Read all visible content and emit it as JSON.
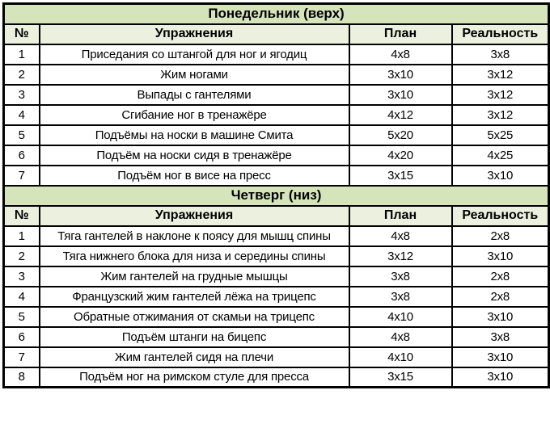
{
  "table": {
    "columns": [
      "№",
      "Упражнения",
      "План",
      "Реальность"
    ],
    "colors": {
      "section_title_bg": "#d6e4bc",
      "column_header_bg": "#ebf1de",
      "cell_bg": "#ffffff",
      "border": "#000000",
      "text": "#000000"
    },
    "sections": [
      {
        "title": "Понедельник (верх)",
        "rows": [
          {
            "num": "1",
            "exercise": "Приседания со штангой для ног и ягодиц",
            "plan": "4x8",
            "reality": "3x8"
          },
          {
            "num": "2",
            "exercise": "Жим ногами",
            "plan": "3x10",
            "reality": "3x12"
          },
          {
            "num": "3",
            "exercise": "Выпады с гантелями",
            "plan": "3x10",
            "reality": "3x12"
          },
          {
            "num": "4",
            "exercise": "Сгибание ног в тренажёре",
            "plan": "4x12",
            "reality": "3x12"
          },
          {
            "num": "5",
            "exercise": "Подъёмы на носки в машине Смита",
            "plan": "5x20",
            "reality": "5x25"
          },
          {
            "num": "6",
            "exercise": "Подъём на носки сидя в тренажёре",
            "plan": "4x20",
            "reality": "4x25"
          },
          {
            "num": "7",
            "exercise": "Подъём ног в висе на пресс",
            "plan": "3x15",
            "reality": "3x10"
          }
        ]
      },
      {
        "title": "Четверг (низ)",
        "rows": [
          {
            "num": "1",
            "exercise": "Тяга гантелей в наклоне к поясу для мышц спины",
            "plan": "4x8",
            "reality": "2x8"
          },
          {
            "num": "2",
            "exercise": "Тяга нижнего блока для низа и середины спины",
            "plan": "3x12",
            "reality": "3x10"
          },
          {
            "num": "3",
            "exercise": "Жим гантелей на грудные мышцы",
            "plan": "3x8",
            "reality": "2x8"
          },
          {
            "num": "4",
            "exercise": "Французский жим гантелей лёжа на трицепс",
            "plan": "3x8",
            "reality": "2x8"
          },
          {
            "num": "5",
            "exercise": "Обратные отжимания от скамьи на трицепс",
            "plan": "4x10",
            "reality": "3x10"
          },
          {
            "num": "6",
            "exercise": "Подъём штанги на бицепс",
            "plan": "4x8",
            "reality": "3x8"
          },
          {
            "num": "7",
            "exercise": "Жим гантелей сидя на плечи",
            "plan": "4x10",
            "reality": "3x10"
          },
          {
            "num": "8",
            "exercise": "Подъём ног на римском стуле для пресса",
            "plan": "3x15",
            "reality": "3x10"
          }
        ]
      }
    ]
  }
}
